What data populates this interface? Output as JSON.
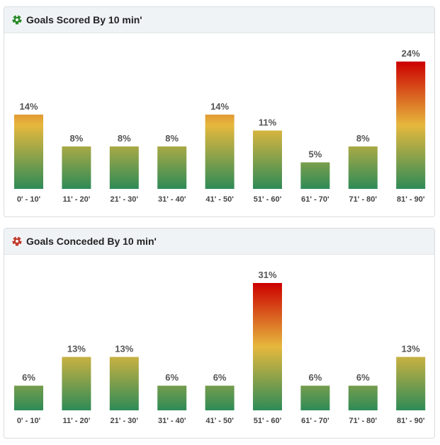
{
  "panels": [
    {
      "title": "Goals Scored By 10 min'",
      "icon": "green-soccer-ball-icon",
      "icon_color": "#2a8a2a",
      "chart_data": {
        "type": "bar",
        "title": "Goals Scored By 10 min'",
        "categories": [
          "0' - 10'",
          "11' - 20'",
          "21' - 30'",
          "31' - 40'",
          "41' - 50'",
          "51' - 60'",
          "61' - 70'",
          "71' - 80'",
          "81' - 90'"
        ],
        "values": [
          14,
          8,
          8,
          8,
          14,
          11,
          5,
          8,
          24
        ],
        "value_labels": [
          "14%",
          "8%",
          "8%",
          "8%",
          "14%",
          "11%",
          "5%",
          "8%",
          "24%"
        ],
        "unit": "%",
        "ylim": [
          0,
          24
        ]
      }
    },
    {
      "title": "Goals Conceded By 10 min'",
      "icon": "red-soccer-ball-icon",
      "icon_color": "#c0392b",
      "chart_data": {
        "type": "bar",
        "title": "Goals Conceded By 10 min'",
        "categories": [
          "0' - 10'",
          "11' - 20'",
          "21' - 30'",
          "31' - 40'",
          "41' - 50'",
          "51' - 60'",
          "61' - 70'",
          "71' - 80'",
          "81' - 90'"
        ],
        "values": [
          6,
          13,
          13,
          6,
          6,
          31,
          6,
          6,
          13
        ],
        "value_labels": [
          "6%",
          "13%",
          "13%",
          "6%",
          "6%",
          "31%",
          "6%",
          "6%",
          "13%"
        ],
        "unit": "%",
        "ylim": [
          0,
          31
        ]
      }
    }
  ],
  "colors": {
    "bar_low": "#2e8b57",
    "bar_mid": "#e6b83d",
    "bar_high": "#cc0000"
  }
}
